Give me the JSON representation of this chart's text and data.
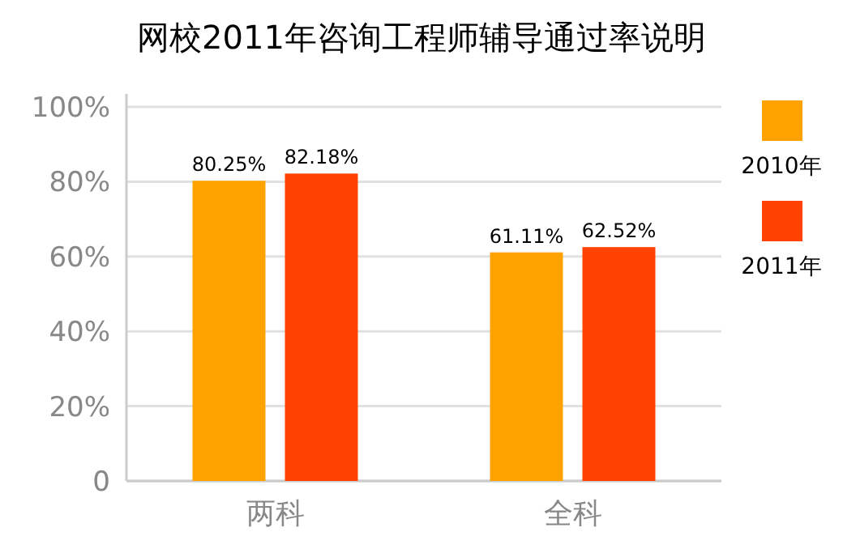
{
  "chart_data": {
    "type": "bar",
    "title": "网校2011年咨询工程师辅导通过率说明",
    "categories": [
      "两科",
      "全科"
    ],
    "series": [
      {
        "name": "2010年",
        "color": "#ffa200",
        "values": [
          80.25,
          61.11
        ],
        "value_labels": [
          "80.25%",
          "61.11%"
        ]
      },
      {
        "name": "2011年",
        "color": "#ff4200",
        "values": [
          82.18,
          62.52
        ],
        "value_labels": [
          "82.18%",
          "62.52%"
        ]
      }
    ],
    "ylim": [
      0,
      100
    ],
    "yticks": [
      0,
      {
        "value": 20,
        "label": "20%"
      },
      {
        "value": 40,
        "label": "40%"
      },
      {
        "value": 60,
        "label": "60%"
      },
      {
        "value": 80,
        "label": "80%"
      },
      {
        "value": 100,
        "label": "100%"
      }
    ],
    "grid": "y",
    "legend": "right"
  }
}
